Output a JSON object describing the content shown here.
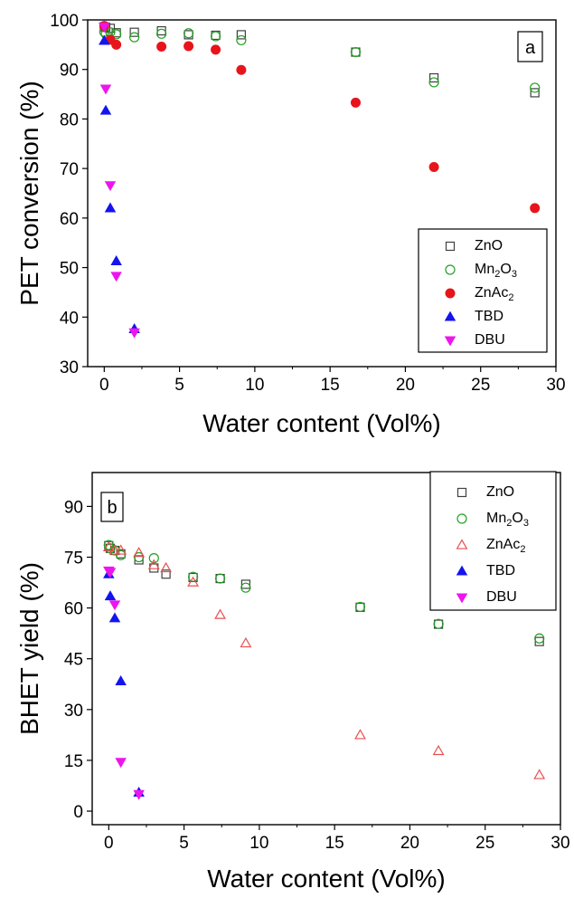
{
  "chart_data": [
    {
      "type": "scatter",
      "panel_tag": "a",
      "xlabel": "Water content (Vol%)",
      "ylabel": "PET conversion (%)",
      "xlim": [
        -1.1,
        30
      ],
      "ylim": [
        30,
        100
      ],
      "xticks": [
        "0",
        "5",
        "10",
        "15",
        "20",
        "25",
        "30"
      ],
      "yticks": [
        "30",
        "40",
        "50",
        "60",
        "70",
        "80",
        "90",
        "100"
      ],
      "legend_position": "bottom-right",
      "grid": false,
      "series": [
        {
          "name": "ZnO",
          "marker": "open-square",
          "color": "#404040",
          "x": [
            0,
            0.1,
            0.4,
            0.8,
            2.0,
            3.8,
            5.6,
            7.4,
            9.1,
            16.7,
            21.9,
            28.6
          ],
          "y": [
            98.6,
            98.5,
            98.3,
            97.4,
            97.5,
            97.8,
            97.0,
            96.9,
            97.0,
            93.5,
            88.3,
            85.3
          ]
        },
        {
          "name": "Mn2O3",
          "label_main": "Mn",
          "label_sub1": "2",
          "label_mid": "O",
          "label_sub2": "3",
          "marker": "open-circle",
          "color": "#22a022",
          "x": [
            0,
            0.1,
            0.4,
            0.8,
            2.0,
            3.8,
            5.6,
            7.4,
            9.1,
            16.7,
            21.9,
            28.6
          ],
          "y": [
            97.6,
            97.2,
            97.5,
            97.1,
            96.5,
            97.2,
            97.3,
            96.7,
            95.9,
            93.5,
            87.4,
            86.3
          ]
        },
        {
          "name": "ZnAc2",
          "label_main": "ZnAc",
          "label_sub1": "2",
          "marker": "filled-circle",
          "color": "#e8141c",
          "x": [
            0,
            0.4,
            0.8,
            3.8,
            5.6,
            7.4,
            9.1,
            16.7,
            21.9,
            28.6
          ],
          "y": [
            98.8,
            96.0,
            95.0,
            94.6,
            94.7,
            94.0,
            89.9,
            83.3,
            70.3,
            62.0
          ]
        },
        {
          "name": "TBD",
          "marker": "filled-triangle-up",
          "color": "#1414ee",
          "x": [
            0,
            0.1,
            0.4,
            0.8,
            2.0
          ],
          "y": [
            95.8,
            81.7,
            62.0,
            51.3,
            37.6
          ]
        },
        {
          "name": "DBU",
          "marker": "filled-triangle-down",
          "color": "#ee14ee",
          "x": [
            0,
            0.1,
            0.4,
            0.8,
            2.0
          ],
          "y": [
            98.6,
            86.1,
            66.6,
            48.3,
            36.9
          ]
        }
      ]
    },
    {
      "type": "scatter",
      "panel_tag": "b",
      "xlabel": "Water content (Vol%)",
      "ylabel": "BHET yield (%)",
      "xlim": [
        -1.1,
        30
      ],
      "ylim": [
        -4,
        100
      ],
      "xticks": [
        "0",
        "5",
        "10",
        "15",
        "20",
        "25",
        "30"
      ],
      "yticks": [
        "0",
        "15",
        "30",
        "45",
        "60",
        "75",
        "90"
      ],
      "legend_position": "top-right",
      "grid": false,
      "series": [
        {
          "name": "ZnO",
          "marker": "open-square",
          "color": "#404040",
          "x": [
            0,
            0.1,
            0.4,
            0.8,
            2.0,
            3.0,
            3.8,
            5.6,
            7.4,
            9.1,
            16.7,
            21.9,
            28.6
          ],
          "y": [
            78.4,
            77.6,
            77.0,
            76.0,
            74.2,
            71.8,
            70.0,
            69.0,
            68.7,
            67.0,
            60.2,
            55.2,
            50.1
          ]
        },
        {
          "name": "Mn2O3",
          "label_main": "Mn",
          "label_sub1": "2",
          "label_mid": "O",
          "label_sub2": "3",
          "marker": "open-circle",
          "color": "#22a022",
          "x": [
            0,
            0.1,
            0.4,
            0.8,
            2.0,
            3.0,
            5.6,
            7.4,
            9.1,
            16.7,
            21.9,
            28.6
          ],
          "y": [
            78.6,
            77.6,
            77.0,
            75.6,
            75.0,
            74.7,
            69.2,
            68.7,
            66.0,
            60.3,
            55.3,
            51.0
          ]
        },
        {
          "name": "ZnAc2",
          "label_main": "ZnAc",
          "label_sub1": "2",
          "marker": "open-triangle",
          "color": "#e85050",
          "x": [
            0,
            0.4,
            0.8,
            2.0,
            3.0,
            3.8,
            5.6,
            7.4,
            9.1,
            16.7,
            21.9,
            28.6
          ],
          "y": [
            78.0,
            77.0,
            77.0,
            76.3,
            72.7,
            71.8,
            67.6,
            58.0,
            49.6,
            22.5,
            17.8,
            10.7
          ]
        },
        {
          "name": "TBD",
          "marker": "filled-triangle-up",
          "color": "#1414ee",
          "x": [
            0,
            0.1,
            0.4,
            0.8,
            2.0
          ],
          "y": [
            70.0,
            63.5,
            57.0,
            38.4,
            5.5
          ]
        },
        {
          "name": "DBU",
          "marker": "filled-triangle-down",
          "color": "#ee14ee",
          "x": [
            0,
            0.1,
            0.4,
            0.8,
            2.0
          ],
          "y": [
            71.0,
            70.6,
            61.0,
            14.5,
            5.0
          ]
        }
      ]
    }
  ]
}
